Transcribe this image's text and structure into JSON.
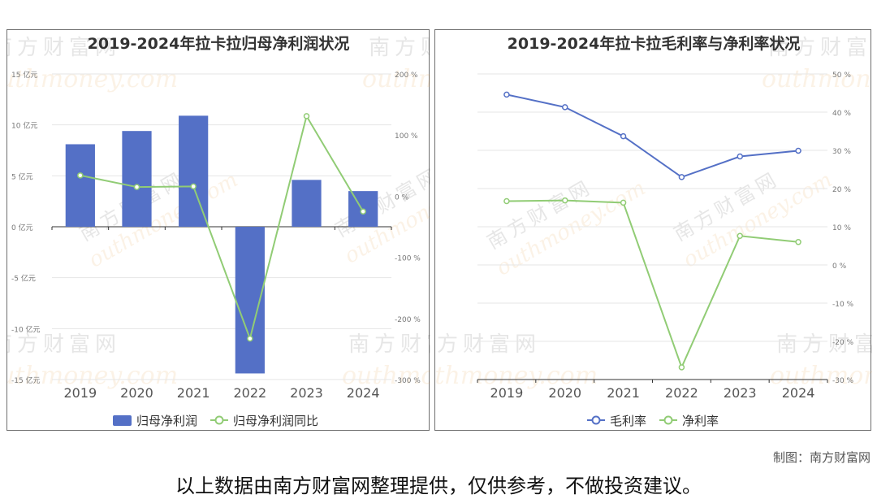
{
  "chart_data": [
    {
      "type": "bar",
      "title": "2019-2024年拉卡拉归母净利润状况",
      "categories": [
        "2019",
        "2020",
        "2021",
        "2022",
        "2023",
        "2024"
      ],
      "ylim": [
        -15,
        15
      ],
      "y_ticks": [
        "15 亿元",
        "10 亿元",
        "5 亿元",
        "0 亿元",
        "-5 亿元",
        "-10 亿元",
        "-15 亿元"
      ],
      "y2lim": [
        -300,
        200
      ],
      "y2_ticks": [
        "200 %",
        "100 %",
        "0 %",
        "-100 %",
        "-200 %",
        "-300 %"
      ],
      "series": [
        {
          "name": "归母净利润",
          "kind": "bar",
          "axis": "left",
          "color": "#5470c6",
          "values": [
            8.1,
            9.4,
            10.9,
            -14.4,
            4.6,
            3.5
          ]
        },
        {
          "name": "归母净利润同比",
          "kind": "line",
          "axis": "right",
          "color": "#91cc75",
          "values": [
            34,
            15,
            16,
            -233,
            131,
            -25
          ]
        }
      ],
      "legend": "bottom",
      "grid": true
    },
    {
      "type": "line",
      "title": "2019-2024年拉卡拉毛利率与净利率状况",
      "categories": [
        "2019",
        "2020",
        "2021",
        "2022",
        "2023",
        "2024"
      ],
      "y2lim": [
        -30,
        50
      ],
      "y2_ticks": [
        "50 %",
        "40 %",
        "30 %",
        "20 %",
        "10 %",
        "0 %",
        "-10 %",
        "-20 %",
        "-30 %"
      ],
      "series": [
        {
          "name": "毛利率",
          "axis": "right",
          "color": "#5470c6",
          "values": [
            44.6,
            41.3,
            33.7,
            23.0,
            28.4,
            29.9
          ]
        },
        {
          "name": "净利率",
          "axis": "right",
          "color": "#91cc75",
          "values": [
            16.7,
            16.9,
            16.3,
            -26.8,
            7.6,
            6.0
          ]
        }
      ],
      "legend": "bottom",
      "grid": true
    }
  ],
  "watermark": {
    "cn": "南方财富网",
    "en": "outhmoney.com"
  },
  "credit": "制图：南方财富网",
  "disclaimer": "以上数据由南方财富网整理提供，仅供参考，不做投资建议。"
}
